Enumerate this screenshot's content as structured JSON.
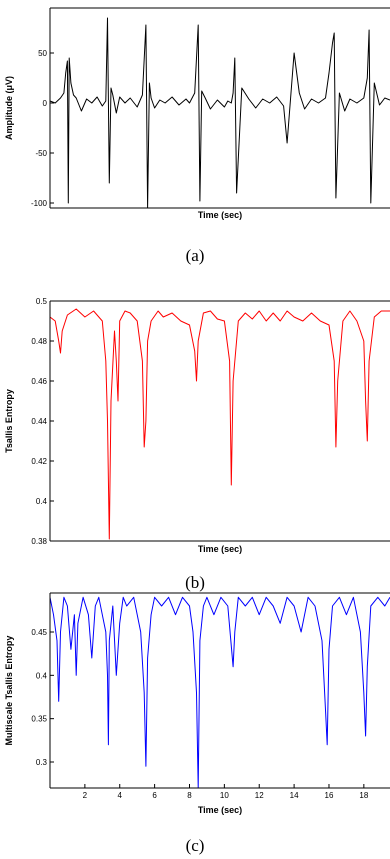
{
  "captions": [
    "(a)",
    "(b)",
    "(c)"
  ],
  "chart_data": [
    {
      "type": "line",
      "xlabel": "Time (sec)",
      "ylabel": "Amplitude (μV)",
      "ylim": [
        -105,
        95
      ],
      "xlim": [
        0,
        19.5
      ],
      "yticks": [
        -100,
        -50,
        0,
        50
      ],
      "ytick_labels": [
        "-100",
        "-50",
        "0",
        "50"
      ],
      "xticks": [],
      "grid": false,
      "series": [
        {
          "color": "#000000",
          "x": [
            0,
            0.3,
            0.6,
            0.8,
            0.9,
            1.0,
            1.05,
            1.1,
            1.2,
            1.35,
            1.5,
            1.8,
            2.1,
            2.4,
            2.7,
            3.0,
            3.2,
            3.3,
            3.4,
            3.5,
            3.6,
            3.8,
            4.0,
            4.3,
            4.6,
            5.0,
            5.3,
            5.5,
            5.6,
            5.7,
            5.8,
            6.0,
            6.3,
            6.6,
            7.0,
            7.4,
            7.8,
            8.0,
            8.3,
            8.5,
            8.6,
            8.7,
            8.9,
            9.2,
            9.6,
            10.0,
            10.2,
            10.4,
            10.5,
            10.6,
            10.7,
            11.0,
            11.4,
            11.8,
            12.2,
            12.6,
            13.0,
            13.4,
            13.6,
            13.8,
            14.0,
            14.3,
            14.6,
            15.0,
            15.4,
            15.8,
            16.0,
            16.2,
            16.3,
            16.4,
            16.6,
            16.9,
            17.2,
            17.6,
            18.0,
            18.2,
            18.3,
            18.4,
            18.6,
            18.9,
            19.2,
            19.5
          ],
          "y": [
            2,
            0,
            5,
            10,
            30,
            42,
            -100,
            45,
            20,
            8,
            5,
            -8,
            4,
            0,
            6,
            -3,
            2,
            85,
            -80,
            15,
            8,
            -10,
            6,
            0,
            5,
            -4,
            8,
            78,
            -105,
            20,
            5,
            -5,
            3,
            0,
            6,
            -2,
            4,
            0,
            10,
            78,
            -98,
            12,
            5,
            -6,
            3,
            -4,
            2,
            0,
            10,
            45,
            -90,
            15,
            4,
            -5,
            4,
            0,
            6,
            -3,
            -40,
            5,
            50,
            10,
            -6,
            4,
            0,
            5,
            30,
            60,
            70,
            -95,
            10,
            -8,
            4,
            0,
            5,
            25,
            73,
            -100,
            20,
            -2,
            5,
            3
          ]
        }
      ]
    },
    {
      "type": "line",
      "xlabel": "Time (sec)",
      "ylabel": "Tsallis Entropy",
      "ylim": [
        0.38,
        0.5
      ],
      "xlim": [
        0,
        19.5
      ],
      "yticks": [
        0.38,
        0.4,
        0.42,
        0.44,
        0.46,
        0.48,
        0.5
      ],
      "ytick_labels": [
        "0.38",
        "0.4",
        "0.42",
        "0.44",
        "0.46",
        "0.48",
        "0.5"
      ],
      "xticks": [],
      "grid": false,
      "series": [
        {
          "color": "#ff0000",
          "x": [
            0,
            0.3,
            0.5,
            0.6,
            0.7,
            1.0,
            1.5,
            2.0,
            2.5,
            3.0,
            3.2,
            3.3,
            3.4,
            3.5,
            3.7,
            3.8,
            3.9,
            4.0,
            4.3,
            4.6,
            5.0,
            5.3,
            5.4,
            5.5,
            5.6,
            5.8,
            6.2,
            6.5,
            7.0,
            7.5,
            8.0,
            8.3,
            8.4,
            8.5,
            8.8,
            9.2,
            9.6,
            10.0,
            10.3,
            10.4,
            10.5,
            10.8,
            11.2,
            11.6,
            12.0,
            12.4,
            12.8,
            13.2,
            13.6,
            14.0,
            14.5,
            15.0,
            15.5,
            16.0,
            16.3,
            16.4,
            16.5,
            16.8,
            17.2,
            17.6,
            18.0,
            18.1,
            18.2,
            18.3,
            18.6,
            19.0,
            19.5
          ],
          "y": [
            0.492,
            0.49,
            0.48,
            0.474,
            0.485,
            0.493,
            0.496,
            0.492,
            0.495,
            0.49,
            0.47,
            0.44,
            0.381,
            0.45,
            0.485,
            0.47,
            0.45,
            0.49,
            0.495,
            0.494,
            0.49,
            0.47,
            0.427,
            0.44,
            0.48,
            0.49,
            0.495,
            0.492,
            0.494,
            0.49,
            0.488,
            0.475,
            0.46,
            0.48,
            0.494,
            0.495,
            0.491,
            0.49,
            0.47,
            0.408,
            0.46,
            0.49,
            0.494,
            0.491,
            0.495,
            0.49,
            0.494,
            0.49,
            0.495,
            0.492,
            0.49,
            0.494,
            0.49,
            0.488,
            0.47,
            0.427,
            0.46,
            0.49,
            0.495,
            0.49,
            0.48,
            0.45,
            0.43,
            0.47,
            0.492,
            0.495,
            0.495
          ]
        }
      ]
    },
    {
      "type": "line",
      "xlabel": "Time (sec)",
      "ylabel": "Multiscale Tsallis Entropy",
      "ylim": [
        0.27,
        0.495
      ],
      "xlim": [
        0,
        19.5
      ],
      "yticks": [
        0.3,
        0.35,
        0.4,
        0.45
      ],
      "ytick_labels": [
        "0.3",
        "0.35",
        "0.4",
        "0.45"
      ],
      "xticks": [
        2,
        4,
        6,
        8,
        10,
        12,
        14,
        16,
        18
      ],
      "xtick_labels": [
        "2",
        "4",
        "6",
        "8",
        "10",
        "12",
        "14",
        "16",
        "18"
      ],
      "grid": false,
      "series": [
        {
          "color": "#0000ff",
          "x": [
            0,
            0.2,
            0.4,
            0.5,
            0.6,
            0.8,
            1.0,
            1.2,
            1.4,
            1.5,
            1.6,
            1.9,
            2.2,
            2.4,
            2.6,
            2.8,
            3.0,
            3.2,
            3.3,
            3.35,
            3.4,
            3.6,
            3.8,
            4.0,
            4.2,
            4.4,
            4.8,
            5.2,
            5.4,
            5.5,
            5.6,
            5.8,
            6.0,
            6.4,
            6.8,
            7.2,
            7.6,
            8.0,
            8.2,
            8.4,
            8.5,
            8.6,
            8.8,
            9.0,
            9.4,
            9.8,
            10.2,
            10.5,
            10.6,
            10.8,
            11.2,
            11.6,
            12.0,
            12.4,
            12.8,
            13.2,
            13.6,
            14.0,
            14.4,
            14.8,
            15.2,
            15.6,
            15.8,
            15.9,
            16.0,
            16.2,
            16.6,
            17.0,
            17.4,
            17.8,
            18.0,
            18.1,
            18.2,
            18.4,
            18.8,
            19.2,
            19.5
          ],
          "y": [
            0.49,
            0.47,
            0.44,
            0.37,
            0.45,
            0.49,
            0.48,
            0.43,
            0.47,
            0.4,
            0.46,
            0.49,
            0.47,
            0.42,
            0.48,
            0.49,
            0.47,
            0.45,
            0.4,
            0.32,
            0.44,
            0.48,
            0.4,
            0.46,
            0.49,
            0.48,
            0.49,
            0.45,
            0.38,
            0.295,
            0.42,
            0.47,
            0.49,
            0.48,
            0.49,
            0.47,
            0.49,
            0.48,
            0.45,
            0.38,
            0.27,
            0.44,
            0.48,
            0.49,
            0.47,
            0.49,
            0.48,
            0.41,
            0.45,
            0.49,
            0.48,
            0.49,
            0.47,
            0.49,
            0.48,
            0.46,
            0.49,
            0.48,
            0.45,
            0.49,
            0.48,
            0.44,
            0.36,
            0.32,
            0.43,
            0.48,
            0.49,
            0.47,
            0.49,
            0.45,
            0.38,
            0.33,
            0.41,
            0.48,
            0.49,
            0.48,
            0.49
          ]
        }
      ]
    }
  ]
}
